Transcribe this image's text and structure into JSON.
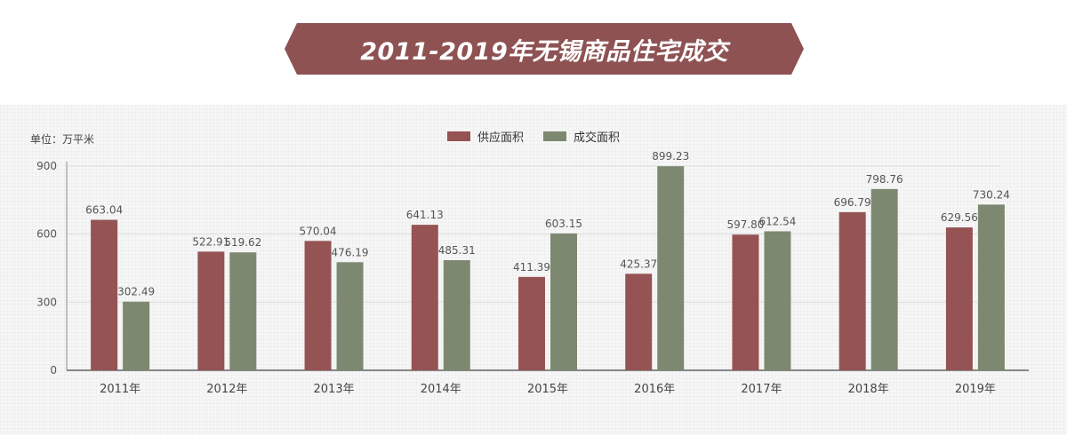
{
  "title": "2011-2019年无锡商品住宅成交",
  "unit_label": "单位：万平米",
  "colors": {
    "banner": "#8e5253",
    "supply": "#955354",
    "deal": "#7d8870",
    "axis": "#888888",
    "grid": "#dddddd"
  },
  "legend": [
    {
      "label": "供应面积",
      "color": "#955354"
    },
    {
      "label": "成交面积",
      "color": "#7d8870"
    }
  ],
  "chart_data": {
    "type": "bar",
    "categories": [
      "2011年",
      "2012年",
      "2013年",
      "2014年",
      "2015年",
      "2016年",
      "2017年",
      "2018年",
      "2019年"
    ],
    "series": [
      {
        "name": "供应面积",
        "values": [
          663.04,
          522.91,
          570.04,
          641.13,
          411.39,
          425.37,
          597.8,
          696.79,
          629.56
        ]
      },
      {
        "name": "成交面积",
        "values": [
          302.49,
          519.62,
          476.19,
          485.31,
          603.15,
          899.23,
          612.54,
          798.76,
          730.24
        ]
      }
    ],
    "value_labels": [
      [
        "663.04",
        "522.91",
        "570.04",
        "641.13",
        "411.39",
        "425.37",
        "597.80",
        "696.79",
        "629.56"
      ],
      [
        "302.49",
        "519.62",
        "476.19",
        "485.31",
        "603.15",
        "899.23",
        "612.54",
        "798.76",
        "730.24"
      ]
    ],
    "yticks": [
      "0",
      "300",
      "600",
      "900"
    ],
    "ylim": [
      0,
      900
    ],
    "grid": true,
    "legend_position": "top-center"
  }
}
